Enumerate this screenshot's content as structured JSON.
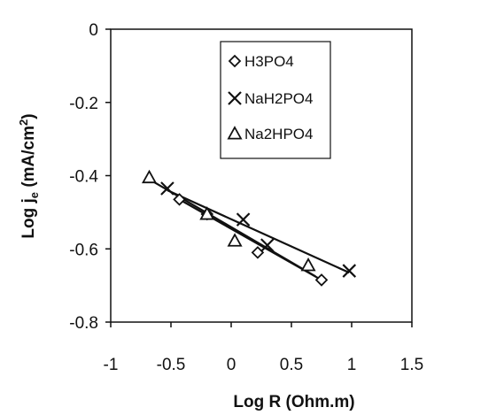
{
  "chart_data": {
    "type": "scatter",
    "title": "",
    "xlabel": "Log R (Ohm.m)",
    "ylabel_main": "Log j",
    "ylabel_sub": "e",
    "ylabel_unit": " (mA/cm",
    "ylabel_sup": "2",
    "ylabel_close": ")",
    "xlim": [
      -1,
      1.5
    ],
    "ylim": [
      -0.8,
      0
    ],
    "x_ticks": [
      -1,
      -0.5,
      0,
      0.5,
      1,
      1.5
    ],
    "x_tick_labels": [
      "-1",
      "-0.5",
      "0",
      "0.5",
      "1",
      "1.5"
    ],
    "y_ticks": [
      0,
      -0.2,
      -0.4,
      -0.6,
      -0.8
    ],
    "y_tick_labels": [
      "0",
      "-0.2",
      "-0.4",
      "-0.6",
      "-0.8"
    ],
    "grid": false,
    "legend_position": "top-center",
    "series": [
      {
        "name": "H3PO4",
        "marker": "diamond",
        "points": [
          [
            -0.43,
            -0.465
          ],
          [
            -0.2,
            -0.505
          ],
          [
            0.22,
            -0.61
          ],
          [
            0.75,
            -0.685
          ]
        ],
        "trendline": [
          [
            -0.43,
            -0.465
          ],
          [
            0.75,
            -0.685
          ]
        ]
      },
      {
        "name": "NaH2PO4",
        "marker": "x",
        "points": [
          [
            -0.53,
            -0.435
          ],
          [
            0.1,
            -0.52
          ],
          [
            0.3,
            -0.59
          ],
          [
            0.98,
            -0.66
          ]
        ],
        "trendline": [
          [
            -0.53,
            -0.44
          ],
          [
            0.98,
            -0.665
          ]
        ]
      },
      {
        "name": "Na2HPO4",
        "marker": "triangle",
        "points": [
          [
            -0.68,
            -0.405
          ],
          [
            -0.2,
            -0.505
          ],
          [
            0.03,
            -0.578
          ],
          [
            0.64,
            -0.645
          ]
        ],
        "trendline": [
          [
            -0.68,
            -0.41
          ],
          [
            0.7,
            -0.675
          ]
        ]
      }
    ]
  }
}
